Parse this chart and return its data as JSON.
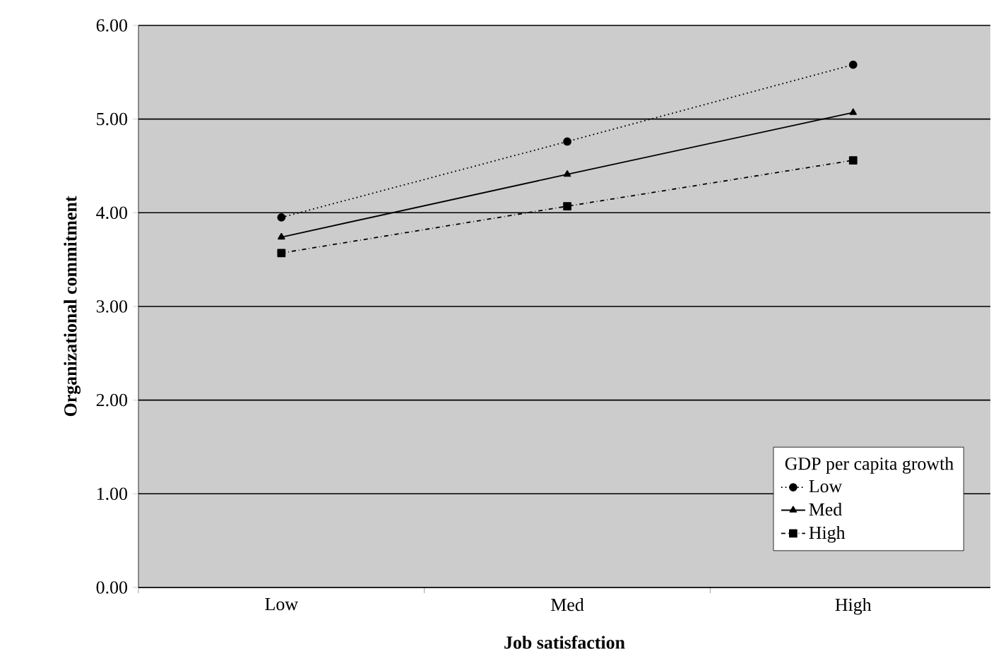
{
  "chart_data": {
    "type": "line",
    "xlabel": "Job satisfaction",
    "ylabel": "Organizational commitment",
    "legend_title": "GDP per capita growth",
    "categories": [
      "Low",
      "Med",
      "High"
    ],
    "series": [
      {
        "name": "Low",
        "color": "#000000",
        "marker": "circle",
        "line_style": "dotted",
        "values": [
          3.95,
          4.76,
          5.58
        ]
      },
      {
        "name": "Med",
        "color": "#000000",
        "marker": "triangle",
        "line_style": "solid",
        "values": [
          3.74,
          4.41,
          5.07
        ]
      },
      {
        "name": "High",
        "color": "#000000",
        "marker": "square",
        "line_style": "dashdot",
        "values": [
          3.57,
          4.07,
          4.56
        ]
      }
    ],
    "ylim": [
      0,
      6
    ],
    "yticks": [
      {
        "value": 0,
        "label": "0.00"
      },
      {
        "value": 1,
        "label": "1.00"
      },
      {
        "value": 2,
        "label": "2.00"
      },
      {
        "value": 3,
        "label": "3.00"
      },
      {
        "value": 4,
        "label": "4.00"
      },
      {
        "value": 5,
        "label": "5.00"
      },
      {
        "value": 6,
        "label": "6.00"
      }
    ],
    "grid": "y",
    "legend": "bottom right"
  }
}
